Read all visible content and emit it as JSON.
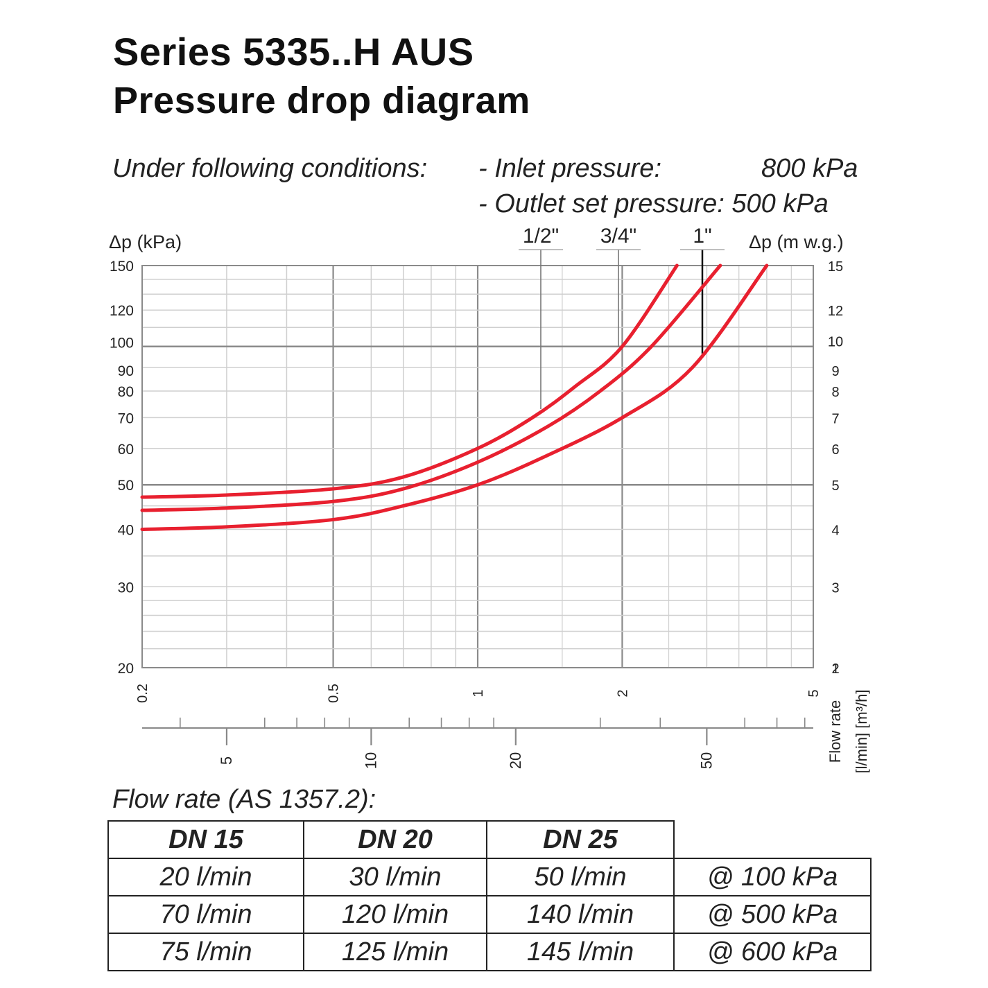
{
  "header": {
    "title": "Series 5335..H AUS",
    "subtitle": "Pressure drop diagram"
  },
  "conditions": {
    "intro": "Under following conditions:",
    "inlet_label": "- Inlet pressure:",
    "inlet_value": "800 kPa",
    "outlet_label": "- Outlet set pressure: 500 kPa"
  },
  "chart_data": {
    "type": "line",
    "x_scale": "log",
    "y_scale": "log",
    "x_label_m3h": "Flow rate [m³/h]",
    "x_label_m3h_lines": [
      "Flow rate",
      "[m³/h]"
    ],
    "x_label_lmin_lines": [
      "Flow rate",
      "[l/min]"
    ],
    "y_label_left": "Δp (kPa)",
    "y_label_right": "Δp (m w.g.)",
    "xlim_m3h": [
      0.2,
      5
    ],
    "ylim_kpa": [
      20,
      150
    ],
    "y_ticks_left": [
      "20",
      "30",
      "40",
      "50",
      "60",
      "70",
      "80",
      "90",
      "100",
      "120",
      "150"
    ],
    "y_ticks_right": [
      "1",
      "2",
      "3",
      "4",
      "5",
      "6",
      "7",
      "8",
      "9",
      "10",
      "12",
      "15"
    ],
    "x_ticks_m3h": [
      "0.2",
      "0.5",
      "1",
      "2",
      "5"
    ],
    "x_ticks_lmin": [
      "5",
      "10",
      "20",
      "50"
    ],
    "size_labels": [
      "1/2\"",
      "3/4\"",
      "1\""
    ],
    "series": [
      {
        "name": "1/2\"",
        "x": [
          0.2,
          0.3,
          0.5,
          0.7,
          1.0,
          1.3,
          1.6,
          2.0,
          2.6
        ],
        "y": [
          47,
          47.5,
          49,
          52,
          60,
          70,
          82,
          100,
          150
        ]
      },
      {
        "name": "3/4\"",
        "x": [
          0.2,
          0.3,
          0.5,
          0.7,
          1.0,
          1.4,
          1.8,
          2.3,
          3.2
        ],
        "y": [
          44,
          44.5,
          46,
          49,
          56,
          67,
          80,
          100,
          150
        ]
      },
      {
        "name": "1\"",
        "x": [
          0.2,
          0.3,
          0.5,
          0.7,
          1.0,
          1.4,
          2.0,
          2.8,
          4.0
        ],
        "y": [
          40,
          40.5,
          42,
          45,
          50,
          58,
          70,
          90,
          150
        ]
      }
    ],
    "colors": {
      "curve": "#e8202f",
      "grid_minor": "#cfcfcf",
      "grid_major": "#8a8a8a"
    }
  },
  "flow_table": {
    "title": "Flow rate (AS 1357.2):",
    "headers": [
      "DN 15",
      "DN 20",
      "DN 25"
    ],
    "rows": [
      [
        "20 l/min",
        "30 l/min",
        "50 l/min",
        "@ 100 kPa"
      ],
      [
        "70 l/min",
        "120 l/min",
        "140 l/min",
        "@ 500 kPa"
      ],
      [
        "75 l/min",
        "125 l/min",
        "145 l/min",
        "@ 600 kPa"
      ]
    ]
  }
}
